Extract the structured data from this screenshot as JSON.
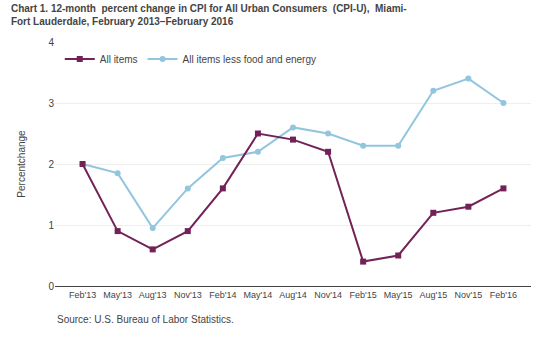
{
  "chart_data": {
    "type": "line",
    "title": "Chart 1. 12-month  percent change in CPI for All Urban Consumers  (CPI-U),  Miami-\nFort Lauderdale, February 2013–February 2016",
    "ylabel": "Percentchange",
    "annotations": [
      "Source: U.S. Bureau of Labor Statistics."
    ],
    "categories": [
      "Feb'13",
      "May'13",
      "Aug'13",
      "Nov'13",
      "Feb'14",
      "May'14",
      "Aug'14",
      "Nov'14",
      "Feb'15",
      "May'15",
      "Aug'15",
      "Nov'15",
      "Feb'16"
    ],
    "series": [
      {
        "name": "All items",
        "color": "#722257",
        "marker": "square",
        "values": [
          2.0,
          0.9,
          0.6,
          0.9,
          1.6,
          2.5,
          2.4,
          2.2,
          0.4,
          0.5,
          1.2,
          1.3,
          1.6
        ]
      },
      {
        "name": "All items less food and energy",
        "color": "#92c5de",
        "marker": "circle",
        "values": [
          2.0,
          1.85,
          0.95,
          1.6,
          2.1,
          2.2,
          2.6,
          2.5,
          2.3,
          2.3,
          3.2,
          3.4,
          3.0
        ]
      }
    ],
    "ylim": [
      0,
      4
    ],
    "yticks": [
      0,
      1,
      2,
      3,
      4
    ],
    "grid": true,
    "legend": "upper left"
  }
}
